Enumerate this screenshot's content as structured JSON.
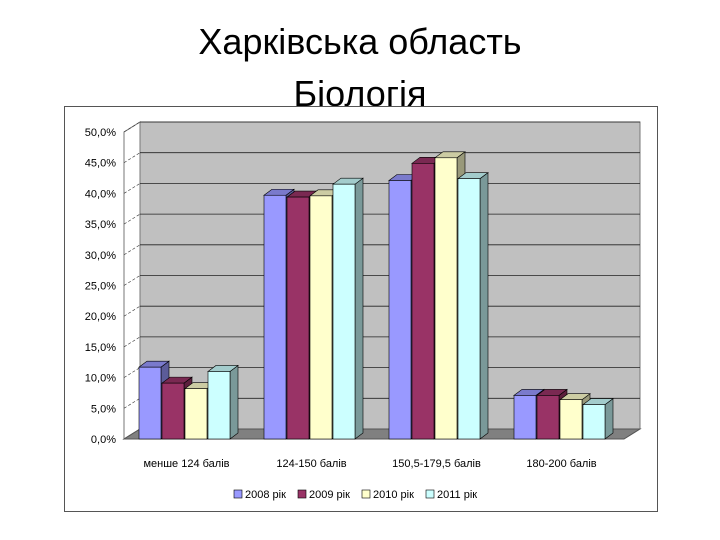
{
  "slide": {
    "title_line1": "Харківська область",
    "title_line2": "Біологія"
  },
  "colors": {
    "series": [
      "#9999ff",
      "#993366",
      "#ffffcc",
      "#ccffff"
    ],
    "wall": "#c0c0c0",
    "floor": "#808080"
  },
  "chart_data": {
    "type": "bar",
    "categories": [
      "менше 124 балів",
      "124-150 балів",
      "150,5-179,5 балів",
      "180-200 балів"
    ],
    "series": [
      {
        "name": "2008 рік",
        "values": [
          11.7,
          39.7,
          42.1,
          7.1
        ]
      },
      {
        "name": "2009 рік",
        "values": [
          9.1,
          39.4,
          44.9,
          7.1
        ]
      },
      {
        "name": "2010 рік",
        "values": [
          8.2,
          39.6,
          45.8,
          6.4
        ]
      },
      {
        "name": "2011 рік",
        "values": [
          11.0,
          41.5,
          42.4,
          5.6
        ]
      }
    ],
    "yticks": [
      "0,0%",
      "5,0%",
      "10,0%",
      "15,0%",
      "20,0%",
      "25,0%",
      "30,0%",
      "35,0%",
      "40,0%",
      "45,0%",
      "50,0%"
    ],
    "ylim": [
      0,
      50
    ],
    "title": "",
    "xlabel": "",
    "ylabel": "",
    "grid": true,
    "legend_position": "bottom",
    "three_d": true
  }
}
